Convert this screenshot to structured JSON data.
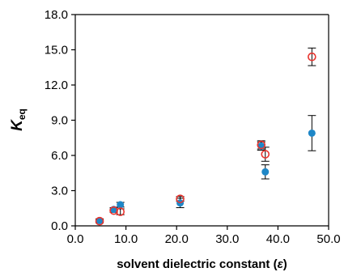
{
  "chart_data": {
    "type": "scatter",
    "xlabel": {
      "main": "solvent dielectric constant (",
      "symbol": "ε",
      "close": ")"
    },
    "ylabel": {
      "main": "K",
      "sub": "eq"
    },
    "xlim": [
      0,
      50
    ],
    "ylim": [
      0,
      18
    ],
    "x_ticks": [
      "0.0",
      "10.0",
      "20.0",
      "30.0",
      "40.0",
      "50.0"
    ],
    "y_ticks": [
      "0.0",
      "3.0",
      "6.0",
      "9.0",
      "12.0",
      "15.0",
      "18.0"
    ],
    "grid": false,
    "series": [
      {
        "marker": "filled-circle",
        "color": "#1f87c7",
        "points": [
          {
            "x": 4.8,
            "y": 0.45,
            "err": 0.15
          },
          {
            "x": 7.6,
            "y": 1.4,
            "err": 0.15
          },
          {
            "x": 8.9,
            "y": 1.8,
            "err": 0.2
          },
          {
            "x": 20.7,
            "y": 1.95,
            "err": 0.4
          },
          {
            "x": 36.7,
            "y": 6.8,
            "err": 0.35
          },
          {
            "x": 37.5,
            "y": 4.6,
            "err": 0.6
          },
          {
            "x": 46.7,
            "y": 7.9,
            "err": 1.5
          }
        ]
      },
      {
        "marker": "open-circle",
        "color": "#e8352f",
        "points": [
          {
            "x": 4.8,
            "y": 0.4,
            "err": 0.15
          },
          {
            "x": 7.6,
            "y": 1.3,
            "err": 0.15
          },
          {
            "x": 8.9,
            "y": 1.2,
            "err": 0.25
          },
          {
            "x": 20.7,
            "y": 2.3,
            "err": 0.2
          },
          {
            "x": 36.7,
            "y": 6.9,
            "err": 0.35
          },
          {
            "x": 37.5,
            "y": 6.1,
            "err": 0.6
          },
          {
            "x": 46.7,
            "y": 14.4,
            "err": 0.75
          }
        ]
      }
    ],
    "error_bar_color": "#000000"
  }
}
